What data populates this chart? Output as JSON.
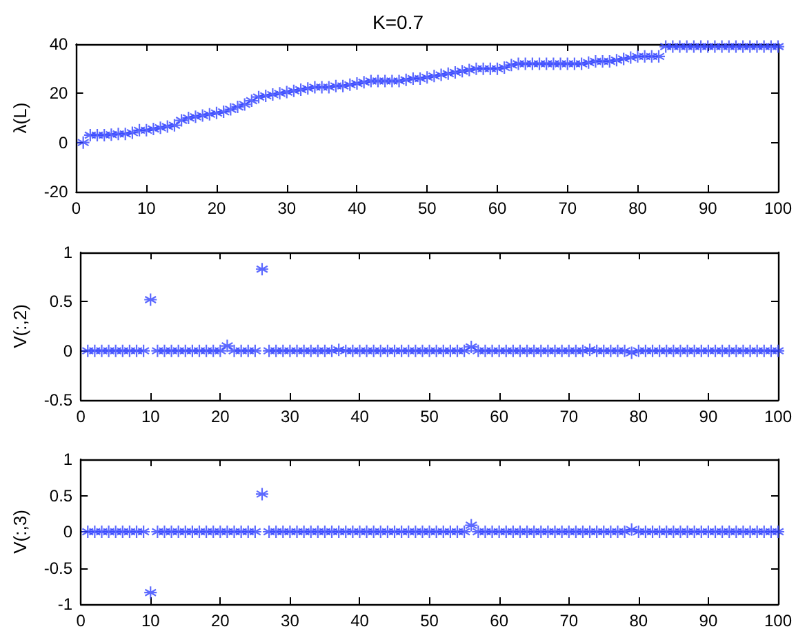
{
  "chart_data": [
    {
      "type": "scatter",
      "title": "K=0.7",
      "ylabel": "λ(L)",
      "marker": "cross",
      "grid": false,
      "x": [
        1,
        2,
        3,
        4,
        5,
        6,
        7,
        8,
        9,
        10,
        11,
        12,
        13,
        14,
        15,
        16,
        17,
        18,
        19,
        20,
        21,
        22,
        23,
        24,
        25,
        26,
        27,
        28,
        29,
        30,
        31,
        32,
        33,
        34,
        35,
        36,
        37,
        38,
        39,
        40,
        41,
        42,
        43,
        44,
        45,
        46,
        47,
        48,
        49,
        50,
        51,
        52,
        53,
        54,
        55,
        56,
        57,
        58,
        59,
        60,
        61,
        62,
        63,
        64,
        65,
        66,
        67,
        68,
        69,
        70,
        71,
        72,
        73,
        74,
        75,
        76,
        77,
        78,
        79,
        80,
        81,
        82,
        83,
        84,
        85,
        86,
        87,
        88,
        89,
        90,
        91,
        92,
        93,
        94,
        95,
        96,
        97,
        98,
        99,
        100
      ],
      "series": [
        {
          "color": "#3344ff",
          "values": [
            0,
            3,
            3,
            3,
            3.2,
            3.5,
            3.5,
            4,
            5,
            5,
            5.5,
            6,
            6.5,
            7,
            9,
            10,
            10.5,
            11,
            11.5,
            12,
            12.5,
            13.5,
            14.5,
            15.5,
            17,
            18.5,
            19,
            19.5,
            20,
            20.5,
            21,
            21.5,
            22,
            22.5,
            22.5,
            22.5,
            23,
            23,
            23.5,
            24,
            24.5,
            25,
            25,
            25,
            25,
            25,
            25.5,
            26,
            26,
            26.5,
            27,
            27.5,
            28,
            28.5,
            29,
            29.5,
            30,
            30,
            30,
            30,
            30.5,
            31.5,
            32,
            32,
            32,
            32,
            32,
            32,
            32,
            32,
            32,
            32,
            32.5,
            33,
            33,
            33,
            33.5,
            34,
            34.5,
            35,
            35,
            35,
            35,
            39,
            39,
            39,
            39,
            39,
            39,
            39,
            39,
            39,
            39,
            39,
            39,
            39,
            39,
            39,
            39,
            39
          ]
        }
      ],
      "xlim": [
        0,
        100
      ],
      "xticks": [
        0,
        10,
        20,
        30,
        40,
        50,
        60,
        70,
        80,
        90,
        100
      ],
      "ylim": [
        -20,
        40
      ],
      "yticks": [
        -20,
        0,
        20,
        40
      ]
    },
    {
      "type": "scatter",
      "ylabel": "V(:,2)",
      "marker": "cross",
      "grid": false,
      "x": [
        1,
        2,
        3,
        4,
        5,
        6,
        7,
        8,
        9,
        10,
        11,
        12,
        13,
        14,
        15,
        16,
        17,
        18,
        19,
        20,
        21,
        22,
        23,
        24,
        25,
        26,
        27,
        28,
        29,
        30,
        31,
        32,
        33,
        34,
        35,
        36,
        37,
        38,
        39,
        40,
        41,
        42,
        43,
        44,
        45,
        46,
        47,
        48,
        49,
        50,
        51,
        52,
        53,
        54,
        55,
        56,
        57,
        58,
        59,
        60,
        61,
        62,
        63,
        64,
        65,
        66,
        67,
        68,
        69,
        70,
        71,
        72,
        73,
        74,
        75,
        76,
        77,
        78,
        79,
        80,
        81,
        82,
        83,
        84,
        85,
        86,
        87,
        88,
        89,
        90,
        91,
        92,
        93,
        94,
        95,
        96,
        97,
        98,
        99,
        100
      ],
      "series": [
        {
          "color": "#3344ff",
          "values": [
            0,
            0,
            0,
            0,
            0,
            0,
            0,
            0,
            0,
            0.52,
            0,
            0,
            0,
            0,
            0,
            0,
            0,
            0,
            0,
            0,
            0.05,
            0,
            0,
            0,
            0,
            0.83,
            0,
            0,
            0,
            0,
            0,
            0,
            0,
            0,
            0,
            0,
            0.01,
            0,
            0,
            0,
            0,
            0,
            0,
            0,
            0,
            0,
            0,
            0,
            0,
            0,
            0,
            0,
            0,
            0,
            0,
            0.04,
            0,
            0,
            0,
            0,
            0,
            0,
            0,
            0,
            0,
            0,
            0,
            0,
            0,
            0,
            0,
            0,
            0.01,
            0,
            0,
            0,
            0,
            0,
            -0.02,
            0,
            0,
            0,
            0,
            0,
            0,
            0,
            0,
            0,
            0,
            0,
            0,
            0,
            0,
            0,
            0,
            0,
            0,
            0,
            0,
            0
          ]
        }
      ],
      "xlim": [
        0,
        100
      ],
      "xticks": [
        0,
        10,
        20,
        30,
        40,
        50,
        60,
        70,
        80,
        90,
        100
      ],
      "ylim": [
        -0.5,
        1
      ],
      "yticks": [
        -0.5,
        0,
        0.5,
        1
      ]
    },
    {
      "type": "scatter",
      "ylabel": "V(:,3)",
      "marker": "cross",
      "grid": false,
      "x": [
        1,
        2,
        3,
        4,
        5,
        6,
        7,
        8,
        9,
        10,
        11,
        12,
        13,
        14,
        15,
        16,
        17,
        18,
        19,
        20,
        21,
        22,
        23,
        24,
        25,
        26,
        27,
        28,
        29,
        30,
        31,
        32,
        33,
        34,
        35,
        36,
        37,
        38,
        39,
        40,
        41,
        42,
        43,
        44,
        45,
        46,
        47,
        48,
        49,
        50,
        51,
        52,
        53,
        54,
        55,
        56,
        57,
        58,
        59,
        60,
        61,
        62,
        63,
        64,
        65,
        66,
        67,
        68,
        69,
        70,
        71,
        72,
        73,
        74,
        75,
        76,
        77,
        78,
        79,
        80,
        81,
        82,
        83,
        84,
        85,
        86,
        87,
        88,
        89,
        90,
        91,
        92,
        93,
        94,
        95,
        96,
        97,
        98,
        99,
        100
      ],
      "series": [
        {
          "color": "#3344ff",
          "values": [
            0,
            0,
            0,
            0,
            0,
            0,
            0,
            0,
            0,
            -0.84,
            0,
            0,
            0,
            0,
            0,
            0,
            0,
            0,
            0,
            0,
            0,
            0,
            0,
            0,
            0,
            0.52,
            0,
            0,
            0,
            0,
            0,
            0,
            0,
            0,
            0,
            0,
            0,
            0,
            0,
            0,
            0,
            0,
            0,
            0,
            0,
            0,
            0,
            0,
            0,
            0,
            0,
            0,
            0,
            0,
            0,
            0.09,
            0,
            0,
            0,
            0,
            0,
            0,
            0,
            0,
            0,
            0,
            0,
            0,
            0,
            0,
            0,
            0,
            0,
            0,
            0,
            0,
            0,
            0,
            0.03,
            0,
            0,
            0,
            0,
            0,
            0,
            0,
            0,
            0,
            0,
            0,
            0,
            0,
            0,
            0,
            0,
            0,
            0,
            0,
            0,
            0
          ]
        }
      ],
      "xlim": [
        0,
        100
      ],
      "xticks": [
        0,
        10,
        20,
        30,
        40,
        50,
        60,
        70,
        80,
        90,
        100
      ],
      "ylim": [
        -1,
        1
      ],
      "yticks": [
        -1,
        -0.5,
        0,
        0.5,
        1
      ]
    }
  ]
}
